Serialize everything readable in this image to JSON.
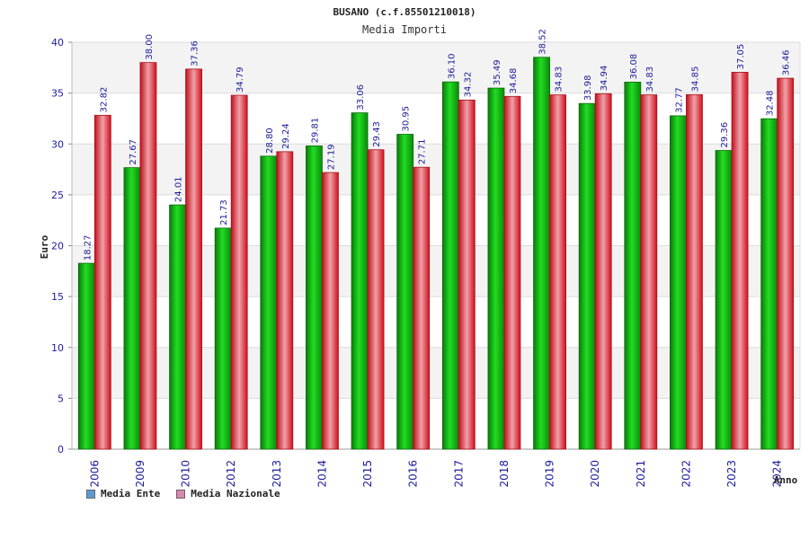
{
  "chart_data": {
    "type": "bar",
    "title": "BUSANO (c.f.85501210018)",
    "subtitle": "Media Importi",
    "xlabel": "Anno",
    "ylabel": "Euro",
    "ylim": [
      0,
      40
    ],
    "yticks": [
      0,
      5,
      10,
      15,
      20,
      25,
      30,
      35,
      40
    ],
    "grid": true,
    "legend_position": "bottom-left",
    "categories": [
      "2006",
      "2009",
      "2010",
      "2012",
      "2013",
      "2014",
      "2015",
      "2016",
      "2017",
      "2018",
      "2019",
      "2020",
      "2021",
      "2022",
      "2023",
      "2024"
    ],
    "series": [
      {
        "name": "Media Ente",
        "color": "#1fa81f",
        "legend_color": "#5b9bd5",
        "values": [
          18.27,
          27.67,
          24.01,
          21.73,
          28.8,
          29.81,
          33.06,
          30.95,
          36.1,
          35.49,
          38.52,
          33.98,
          36.08,
          32.77,
          29.36,
          32.48
        ],
        "labels": [
          "18.27",
          "27.67",
          "24.01",
          "21.73",
          "28.80",
          "29.81",
          "33.06",
          "30.95",
          "36.10",
          "35.49",
          "38.52",
          "33.98",
          "36.08",
          "32.77",
          "29.36",
          "32.48"
        ]
      },
      {
        "name": "Media Nazionale",
        "color": "#e0202a",
        "legend_color": "#d988b0",
        "values": [
          32.82,
          38.0,
          37.36,
          34.79,
          29.24,
          27.19,
          29.43,
          27.71,
          34.32,
          34.68,
          34.83,
          34.94,
          34.83,
          34.85,
          37.05,
          36.46
        ],
        "labels": [
          "32.82",
          "38.00",
          "37.36",
          "34.79",
          "29.24",
          "27.19",
          "29.43",
          "27.71",
          "34.32",
          "34.68",
          "34.83",
          "34.94",
          "34.83",
          "34.85",
          "37.05",
          "36.46"
        ]
      }
    ]
  }
}
